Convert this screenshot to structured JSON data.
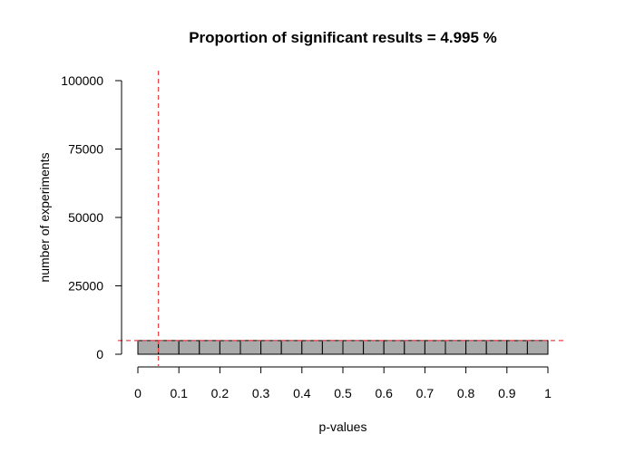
{
  "chart_data": {
    "type": "bar",
    "title": "Proportion of significant results =  4.995 %",
    "xlabel": "p-values",
    "ylabel": "number of experiments",
    "bins": [
      {
        "start": 0.0,
        "end": 0.05,
        "count": 4995
      },
      {
        "start": 0.05,
        "end": 0.1,
        "count": 5010
      },
      {
        "start": 0.1,
        "end": 0.15,
        "count": 4990
      },
      {
        "start": 0.15,
        "end": 0.2,
        "count": 5005
      },
      {
        "start": 0.2,
        "end": 0.25,
        "count": 4985
      },
      {
        "start": 0.25,
        "end": 0.3,
        "count": 5012
      },
      {
        "start": 0.3,
        "end": 0.35,
        "count": 4998
      },
      {
        "start": 0.35,
        "end": 0.4,
        "count": 5003
      },
      {
        "start": 0.4,
        "end": 0.45,
        "count": 4992
      },
      {
        "start": 0.45,
        "end": 0.5,
        "count": 5008
      },
      {
        "start": 0.5,
        "end": 0.55,
        "count": 4997
      },
      {
        "start": 0.55,
        "end": 0.6,
        "count": 5001
      },
      {
        "start": 0.6,
        "end": 0.65,
        "count": 4989
      },
      {
        "start": 0.65,
        "end": 0.7,
        "count": 5011
      },
      {
        "start": 0.7,
        "end": 0.75,
        "count": 4994
      },
      {
        "start": 0.75,
        "end": 0.8,
        "count": 5006
      },
      {
        "start": 0.8,
        "end": 0.85,
        "count": 4999
      },
      {
        "start": 0.85,
        "end": 0.9,
        "count": 5004
      },
      {
        "start": 0.9,
        "end": 0.95,
        "count": 4993
      },
      {
        "start": 0.95,
        "end": 1.0,
        "count": 5008
      }
    ],
    "xlim": [
      0,
      1
    ],
    "ylim": [
      0,
      100000
    ],
    "xticks": [
      0,
      0.1,
      0.2,
      0.3,
      0.4,
      0.5,
      0.6,
      0.7,
      0.8,
      0.9,
      1
    ],
    "xtick_labels": [
      "0",
      "0.1",
      "0.2",
      "0.3",
      "0.4",
      "0.5",
      "0.6",
      "0.7",
      "0.8",
      "0.9",
      "1"
    ],
    "yticks": [
      0,
      25000,
      50000,
      75000,
      100000
    ],
    "ytick_labels": [
      "0",
      "25000",
      "50000",
      "75000",
      "100000"
    ],
    "reference_lines": [
      {
        "orientation": "vertical",
        "value": 0.05,
        "color": "#e8474c",
        "style": "dashed"
      },
      {
        "orientation": "horizontal",
        "value": 5000,
        "color": "#e8474c",
        "style": "dashed"
      }
    ],
    "bar_fill": "#aaaaaa",
    "bar_stroke": "#000000",
    "grid": false,
    "legend": "none"
  }
}
